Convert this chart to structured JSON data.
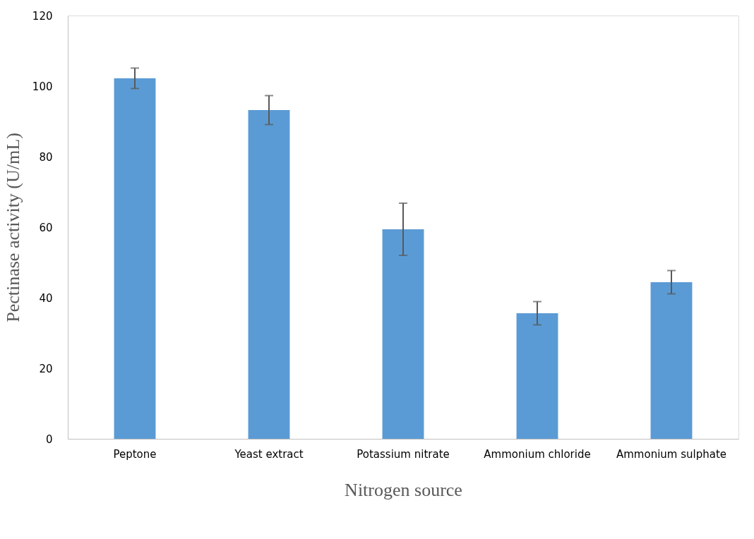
{
  "chart_data": {
    "type": "bar",
    "xlabel": "Nitrogen source",
    "ylabel": "Pectinase activity (U/mL)",
    "categories": [
      "Peptone",
      "Yeast extract",
      "Potassium nitrate",
      "Ammonium chloride",
      "Ammonium sulphate"
    ],
    "values": [
      102.2,
      93.2,
      59.4,
      35.6,
      44.4
    ],
    "errors": [
      2.9,
      4.1,
      7.4,
      3.3,
      3.3
    ],
    "color": "#5b9bd5",
    "ylim": [
      0,
      120
    ],
    "yticks": [
      0,
      20,
      40,
      60,
      80,
      100,
      120
    ],
    "grid": false
  }
}
